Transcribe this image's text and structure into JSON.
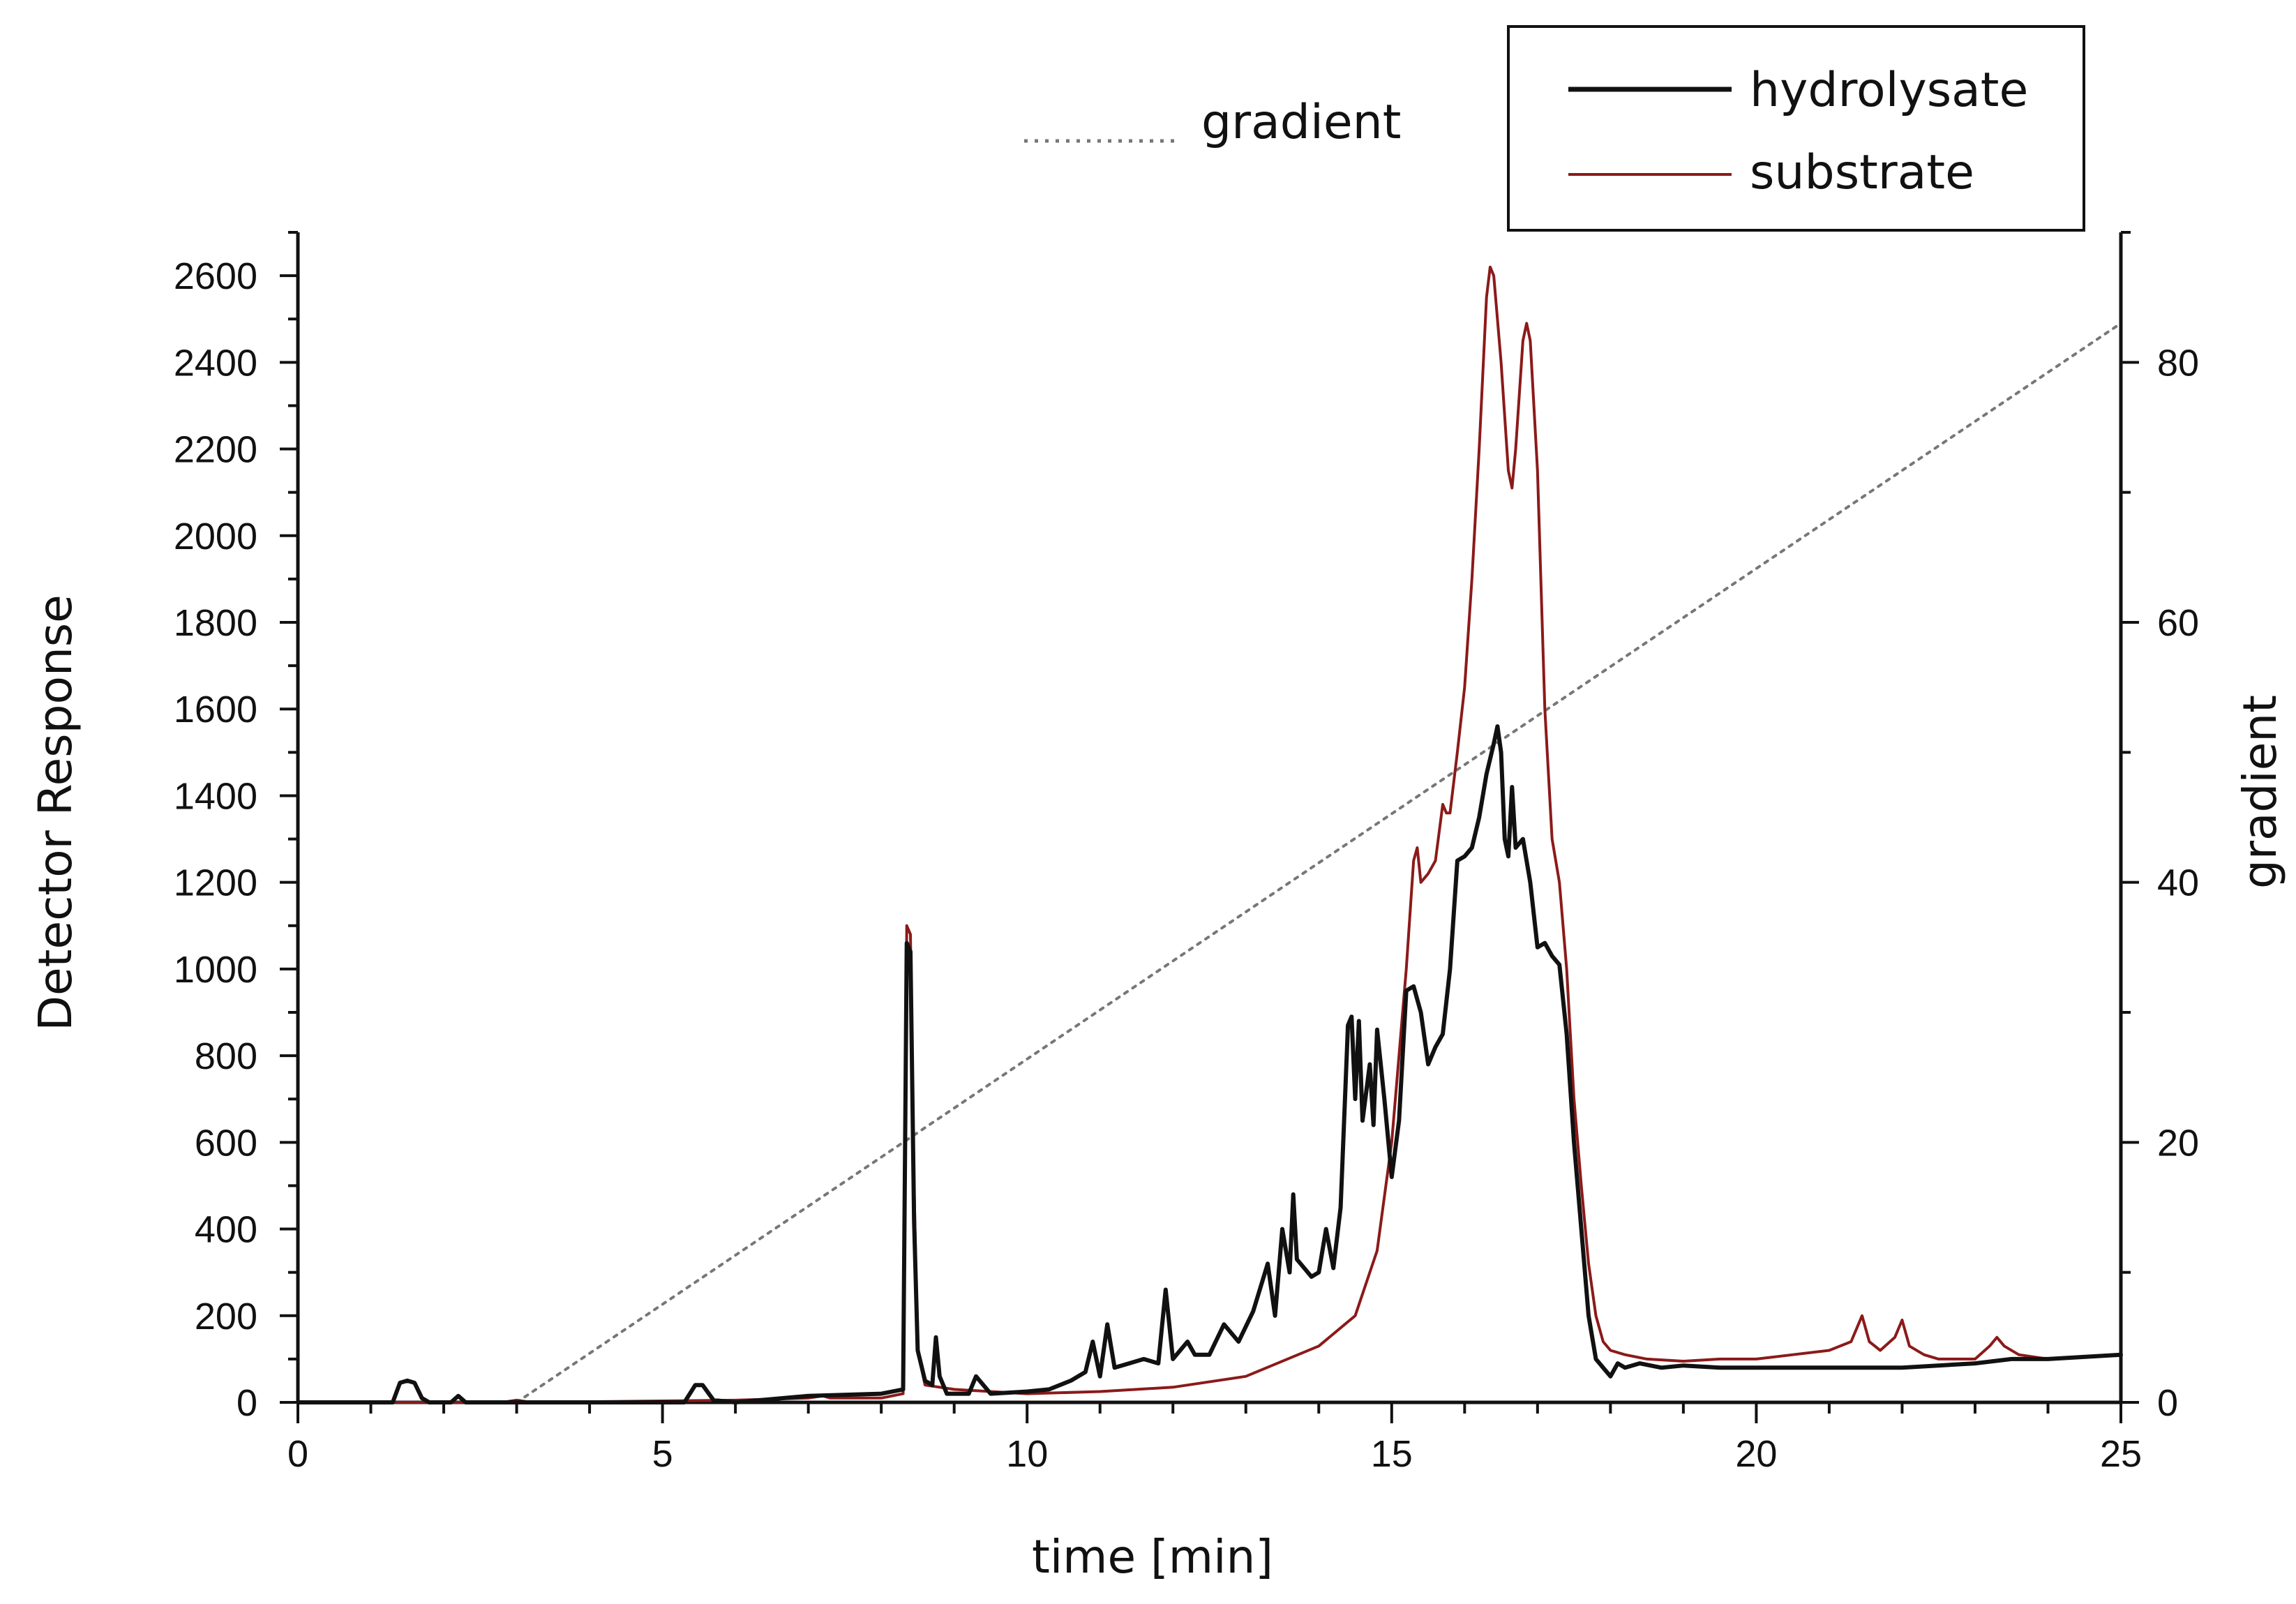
{
  "chart_data": {
    "type": "line",
    "title": "",
    "xlabel": "time [min]",
    "ylabel": "Detector  Response",
    "y2label": "gradient",
    "xlim": [
      0,
      25
    ],
    "ylim": [
      0,
      2700
    ],
    "y2lim": [
      0,
      90
    ],
    "xticks": [
      0,
      5,
      10,
      15,
      20,
      25
    ],
    "xtick_labels": [
      "0",
      "5",
      "10",
      "15",
      "20",
      "25"
    ],
    "yticks": [
      0,
      200,
      400,
      600,
      800,
      1000,
      1200,
      1400,
      1600,
      1800,
      2000,
      2200,
      2400,
      2600
    ],
    "ytick_labels": [
      "0",
      "200",
      "400",
      "600",
      "800",
      "1000",
      "1200",
      "1400",
      "1600",
      "1800",
      "2000",
      "2200",
      "2400",
      "2600"
    ],
    "y2ticks": [
      0,
      20,
      40,
      60,
      80
    ],
    "y2tick_labels": [
      "0",
      "20",
      "40",
      "60",
      "80"
    ],
    "grid": false,
    "legend_position": "top-right",
    "series": [
      {
        "name": "hydrolysate",
        "color": "#111111",
        "axis": "left",
        "style": "solid",
        "x": [
          0,
          1.3,
          1.4,
          1.5,
          1.6,
          1.7,
          1.8,
          2.1,
          2.2,
          2.3,
          5.3,
          5.45,
          5.55,
          5.7,
          6.0,
          7.0,
          8.0,
          8.3,
          8.35,
          8.4,
          8.45,
          8.5,
          8.6,
          8.7,
          8.75,
          8.8,
          8.9,
          9.2,
          9.3,
          9.5,
          10.0,
          10.3,
          10.6,
          10.8,
          10.9,
          11.0,
          11.1,
          11.2,
          11.4,
          11.6,
          11.8,
          11.9,
          12.0,
          12.2,
          12.3,
          12.5,
          12.7,
          12.9,
          13.1,
          13.3,
          13.4,
          13.5,
          13.6,
          13.65,
          13.7,
          13.8,
          13.9,
          14.0,
          14.1,
          14.2,
          14.3,
          14.4,
          14.45,
          14.5,
          14.55,
          14.6,
          14.7,
          14.75,
          14.8,
          14.9,
          15.0,
          15.1,
          15.2,
          15.3,
          15.4,
          15.5,
          15.6,
          15.7,
          15.8,
          15.9,
          16.0,
          16.1,
          16.2,
          16.3,
          16.4,
          16.45,
          16.5,
          16.55,
          16.6,
          16.65,
          16.7,
          16.8,
          16.9,
          17.0,
          17.1,
          17.2,
          17.3,
          17.4,
          17.5,
          17.6,
          17.7,
          17.8,
          17.9,
          18.0,
          18.1,
          18.2,
          18.4,
          18.7,
          19.0,
          19.5,
          20.0,
          21.0,
          22.0,
          23.0,
          23.5,
          24.0,
          25.0
        ],
        "y": [
          0,
          0,
          45,
          50,
          45,
          10,
          0,
          0,
          15,
          0,
          0,
          40,
          40,
          5,
          0,
          15,
          20,
          30,
          1060,
          1040,
          420,
          120,
          50,
          40,
          150,
          60,
          20,
          20,
          60,
          20,
          25,
          30,
          50,
          70,
          140,
          60,
          180,
          80,
          90,
          100,
          90,
          260,
          100,
          140,
          110,
          110,
          180,
          140,
          210,
          320,
          200,
          400,
          300,
          480,
          330,
          310,
          290,
          300,
          400,
          310,
          450,
          870,
          890,
          700,
          880,
          650,
          780,
          640,
          860,
          700,
          520,
          650,
          950,
          960,
          900,
          780,
          820,
          850,
          1000,
          1250,
          1260,
          1280,
          1350,
          1450,
          1520,
          1560,
          1500,
          1300,
          1260,
          1420,
          1280,
          1300,
          1200,
          1050,
          1060,
          1030,
          1010,
          850,
          600,
          400,
          200,
          100,
          80,
          60,
          90,
          80,
          90,
          80,
          85,
          80,
          80,
          80,
          80,
          90,
          100,
          100,
          110
        ]
      },
      {
        "name": "substrate",
        "color": "#8b1a1a",
        "axis": "left",
        "style": "solid",
        "x": [
          0,
          2.8,
          3.0,
          3.2,
          6.0,
          7.0,
          7.2,
          7.3,
          7.4,
          8.0,
          8.3,
          8.35,
          8.4,
          8.45,
          8.5,
          8.6,
          9.0,
          10.0,
          11.0,
          12.0,
          13.0,
          14.0,
          14.5,
          14.8,
          15.0,
          15.1,
          15.2,
          15.3,
          15.35,
          15.4,
          15.5,
          15.6,
          15.7,
          15.75,
          15.8,
          15.9,
          16.0,
          16.1,
          16.2,
          16.3,
          16.35,
          16.4,
          16.5,
          16.6,
          16.65,
          16.7,
          16.8,
          16.85,
          16.9,
          17.0,
          17.1,
          17.2,
          17.3,
          17.4,
          17.5,
          17.6,
          17.7,
          17.8,
          17.9,
          18.0,
          18.2,
          18.5,
          19.0,
          19.5,
          20.0,
          20.5,
          21.0,
          21.3,
          21.45,
          21.55,
          21.7,
          21.9,
          22.0,
          22.1,
          22.3,
          22.5,
          23.0,
          23.2,
          23.3,
          23.4,
          23.6,
          24.0,
          25.0
        ],
        "y": [
          0,
          0,
          5,
          0,
          5,
          10,
          15,
          10,
          10,
          10,
          20,
          1100,
          1080,
          500,
          120,
          40,
          30,
          20,
          25,
          35,
          60,
          130,
          200,
          350,
          600,
          800,
          1000,
          1250,
          1280,
          1200,
          1220,
          1250,
          1380,
          1360,
          1360,
          1500,
          1650,
          1900,
          2200,
          2550,
          2620,
          2600,
          2400,
          2150,
          2110,
          2200,
          2450,
          2490,
          2450,
          2150,
          1600,
          1300,
          1200,
          1000,
          700,
          500,
          320,
          200,
          140,
          120,
          110,
          100,
          95,
          100,
          100,
          110,
          120,
          140,
          200,
          140,
          120,
          150,
          190,
          130,
          110,
          100,
          100,
          130,
          150,
          130,
          110,
          100,
          110
        ]
      },
      {
        "name": "gradient",
        "color": "#777777",
        "axis": "right",
        "style": "dotted",
        "x": [
          3.0,
          25.0
        ],
        "y": [
          0,
          83
        ]
      }
    ]
  }
}
